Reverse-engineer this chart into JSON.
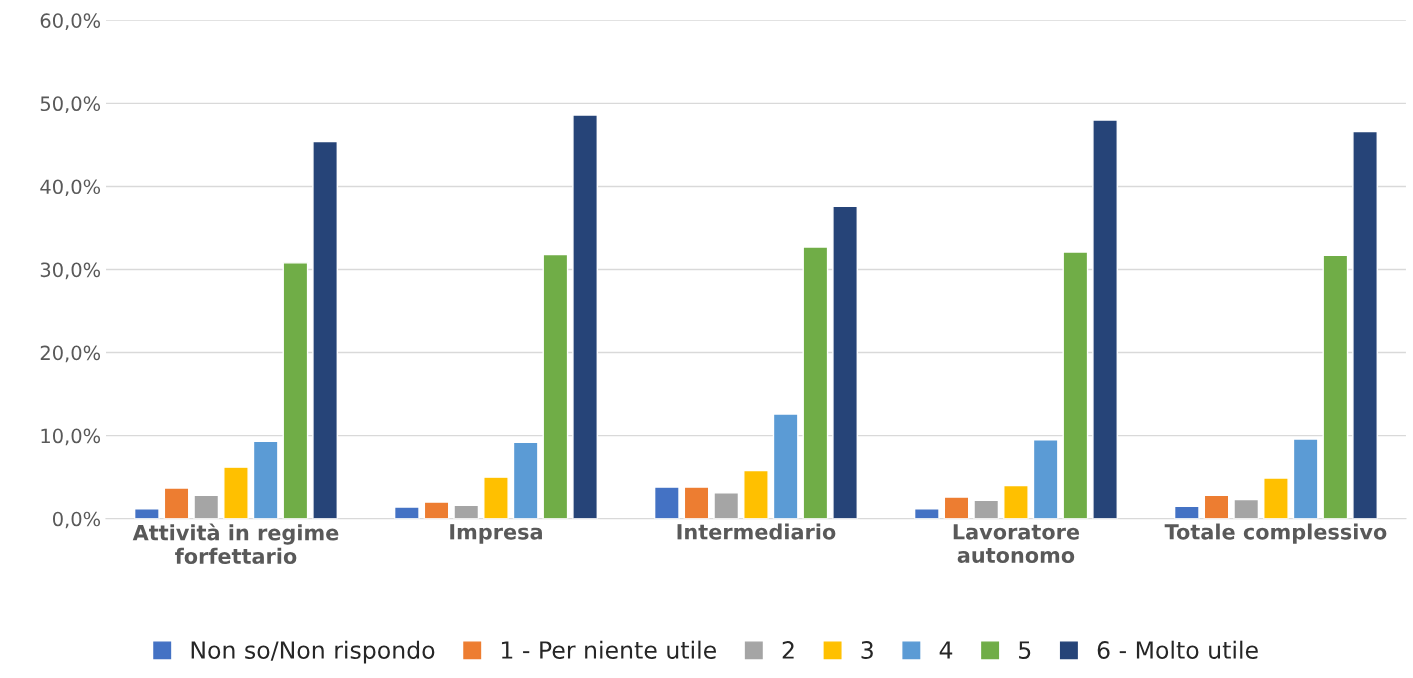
{
  "chart_data": {
    "type": "bar",
    "categories": [
      "Attività in regime\nforfettario",
      "Impresa",
      "Intermediario",
      "Lavoratore\nautonomo",
      "Totale complessivo"
    ],
    "series": [
      {
        "name": "Non so/Non rispondo",
        "color": "#4472c4",
        "values": [
          1.2,
          1.4,
          3.8,
          1.2,
          1.5
        ]
      },
      {
        "name": "1 - Per niente utile",
        "color": "#ed7d31",
        "values": [
          3.7,
          2.0,
          3.8,
          2.6,
          2.8
        ]
      },
      {
        "name": "2",
        "color": "#a5a5a5",
        "values": [
          2.8,
          1.6,
          3.1,
          2.2,
          2.3
        ]
      },
      {
        "name": "3",
        "color": "#ffc000",
        "values": [
          6.2,
          5.0,
          5.8,
          4.0,
          4.9
        ]
      },
      {
        "name": "4",
        "color": "#5b9bd5",
        "values": [
          9.3,
          9.2,
          12.6,
          9.5,
          9.6
        ]
      },
      {
        "name": "5",
        "color": "#70ad47",
        "values": [
          30.8,
          31.8,
          32.7,
          32.1,
          31.7
        ]
      },
      {
        "name": "6 - Molto utile",
        "color": "#264478",
        "values": [
          45.4,
          48.6,
          37.6,
          48.0,
          46.6
        ]
      }
    ],
    "ylim": [
      0,
      60
    ],
    "yticks": [
      {
        "value": 0,
        "label": "0,0%"
      },
      {
        "value": 10,
        "label": "10,0%"
      },
      {
        "value": 20,
        "label": "20,0%"
      },
      {
        "value": 30,
        "label": "30,0%"
      },
      {
        "value": 40,
        "label": "40,0%"
      },
      {
        "value": 50,
        "label": "50,0%"
      },
      {
        "value": 60,
        "label": "60,0%"
      }
    ],
    "grid": "y",
    "legend": "bottom"
  }
}
